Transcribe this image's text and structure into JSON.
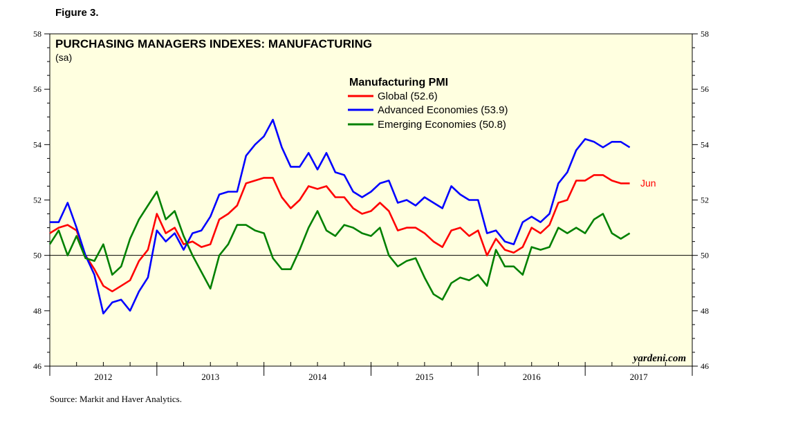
{
  "figure_label": "Figure 3.",
  "source": "Source:  Markit and Haver Analytics.",
  "watermark": "yardeni.com",
  "chart_data": {
    "type": "line",
    "title": "PURCHASING MANAGERS INDEXES: MANUFACTURING",
    "subtitle": "(sa)",
    "legend_title": "Manufacturing PMI",
    "legend_position": "top-center",
    "end_label": "Jun",
    "xlabel": "",
    "ylabel": "",
    "ylim": [
      46,
      58
    ],
    "yticks": [
      46,
      48,
      50,
      52,
      54,
      56,
      58
    ],
    "reference_line": 50,
    "xlim": [
      2011.5,
      2017.5
    ],
    "xticks": [
      2012,
      2013,
      2014,
      2015,
      2016,
      2017
    ],
    "xtick_labels": [
      "2012",
      "2013",
      "2014",
      "2015",
      "2016",
      "2017"
    ],
    "x_start": 2011.5,
    "x_step": 0.08333,
    "colors": {
      "global": "#ff0000",
      "advanced": "#0000ff",
      "emerging": "#008000"
    },
    "series": [
      {
        "key": "global",
        "name": "Global (52.6)",
        "values": [
          50.8,
          51.0,
          51.1,
          50.9,
          50.0,
          49.5,
          48.9,
          48.7,
          48.9,
          49.1,
          49.8,
          50.2,
          51.5,
          50.8,
          51.0,
          50.4,
          50.5,
          50.3,
          50.4,
          51.3,
          51.5,
          51.8,
          52.6,
          52.7,
          52.8,
          52.8,
          52.1,
          51.7,
          52.0,
          52.5,
          52.4,
          52.5,
          52.1,
          52.1,
          51.7,
          51.5,
          51.6,
          51.9,
          51.6,
          50.9,
          51.0,
          51.0,
          50.8,
          50.5,
          50.3,
          50.9,
          51.0,
          50.7,
          50.9,
          50.0,
          50.6,
          50.2,
          50.1,
          50.3,
          51.0,
          50.8,
          51.1,
          51.9,
          52.0,
          52.7,
          52.7,
          52.9,
          52.9,
          52.7,
          52.6,
          52.6
        ]
      },
      {
        "key": "advanced",
        "name": "Advanced Economies (53.9)",
        "values": [
          51.2,
          51.2,
          51.9,
          51.0,
          50.0,
          49.3,
          47.9,
          48.3,
          48.4,
          48.0,
          48.7,
          49.2,
          50.9,
          50.5,
          50.8,
          50.2,
          50.8,
          50.9,
          51.4,
          52.2,
          52.3,
          52.3,
          53.6,
          54.0,
          54.3,
          54.9,
          53.9,
          53.2,
          53.2,
          53.7,
          53.1,
          53.7,
          53.0,
          52.9,
          52.3,
          52.1,
          52.3,
          52.6,
          52.7,
          51.9,
          52.0,
          51.8,
          52.1,
          51.9,
          51.7,
          52.5,
          52.2,
          52.0,
          52.0,
          50.8,
          50.9,
          50.5,
          50.4,
          51.2,
          51.4,
          51.2,
          51.5,
          52.6,
          53.0,
          53.8,
          54.2,
          54.1,
          53.9,
          54.1,
          54.1,
          53.9
        ]
      },
      {
        "key": "emerging",
        "name": "Emerging Economies (50.8)",
        "values": [
          50.4,
          50.9,
          50.0,
          50.7,
          49.9,
          49.8,
          50.4,
          49.3,
          49.6,
          50.6,
          51.3,
          51.8,
          52.3,
          51.3,
          51.6,
          50.7,
          50.0,
          49.4,
          48.8,
          50.0,
          50.4,
          51.1,
          51.1,
          50.9,
          50.8,
          49.9,
          49.5,
          49.5,
          50.2,
          51.0,
          51.6,
          50.9,
          50.7,
          51.1,
          51.0,
          50.8,
          50.7,
          51.0,
          50.0,
          49.6,
          49.8,
          49.9,
          49.2,
          48.6,
          48.4,
          49.0,
          49.2,
          49.1,
          49.3,
          48.9,
          50.2,
          49.6,
          49.6,
          49.3,
          50.3,
          50.2,
          50.3,
          51.0,
          50.8,
          51.0,
          50.8,
          51.3,
          51.5,
          50.8,
          50.6,
          50.8
        ]
      }
    ]
  }
}
